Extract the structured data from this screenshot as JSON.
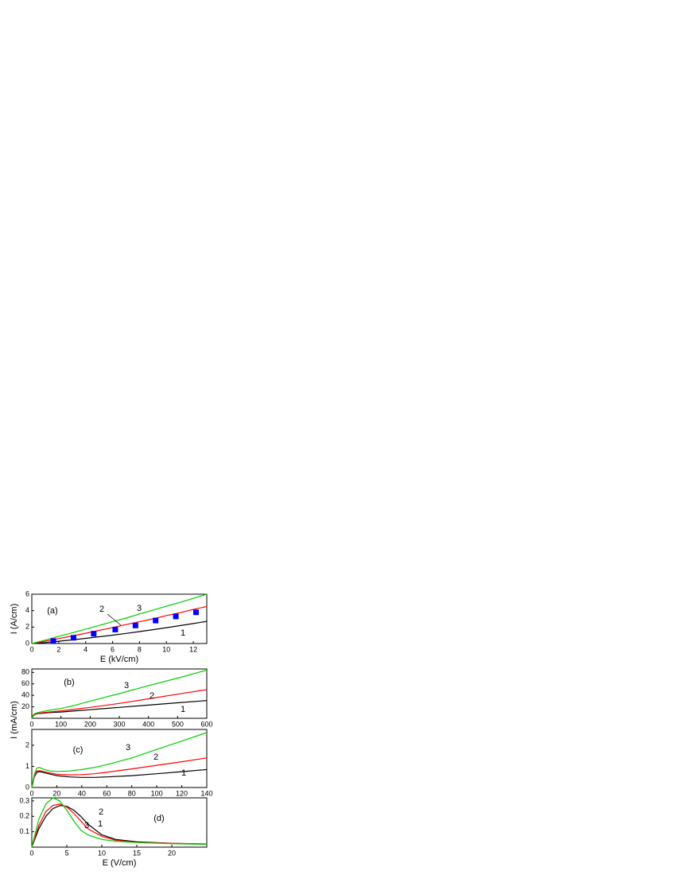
{
  "chart_data": [
    {
      "type": "line",
      "panel_label": "(a)",
      "xlabel": "E (kV/cm)",
      "ylabel": "I (A/cm)",
      "x": [
        0,
        1,
        2,
        3,
        4,
        5,
        6,
        7,
        8,
        9,
        10,
        11,
        12,
        13
      ],
      "xlim": [
        0,
        13
      ],
      "xticks": [
        0,
        2,
        4,
        6,
        8,
        10,
        12
      ],
      "ylim": [
        0,
        6
      ],
      "yticks": [
        0,
        2,
        4,
        6
      ],
      "series": [
        {
          "name": "1",
          "color": "#000000",
          "values": [
            0,
            0.12,
            0.28,
            0.45,
            0.63,
            0.82,
            1.02,
            1.23,
            1.45,
            1.68,
            1.93,
            2.18,
            2.43,
            2.7
          ]
        },
        {
          "name": "2",
          "color": "#ff0000",
          "values": [
            0,
            0.28,
            0.6,
            0.92,
            1.25,
            1.6,
            1.95,
            2.3,
            2.65,
            3.0,
            3.4,
            3.75,
            4.15,
            4.5
          ]
        },
        {
          "name": "3",
          "color": "#00cc00",
          "values": [
            0,
            0.42,
            0.86,
            1.3,
            1.75,
            2.2,
            2.65,
            3.1,
            3.6,
            4.05,
            4.55,
            5.0,
            5.5,
            6.0
          ]
        },
        {
          "marker": "square",
          "color": "#0000ff",
          "x": [
            1.6,
            3.1,
            4.6,
            6.2,
            7.7,
            9.2,
            10.7,
            12.2
          ],
          "values": [
            0.3,
            0.7,
            1.2,
            1.7,
            2.2,
            2.8,
            3.3,
            3.8
          ]
        }
      ]
    },
    {
      "type": "line",
      "panel_label": "(b)",
      "x": [
        0,
        5,
        10,
        20,
        40,
        60,
        100,
        150,
        200,
        300,
        400,
        500,
        600
      ],
      "xlim": [
        0,
        600
      ],
      "xticks": [
        0,
        100,
        200,
        300,
        400,
        500,
        600
      ],
      "ylim": [
        0,
        86
      ],
      "yticks": [
        20,
        40,
        60,
        80
      ],
      "series": [
        {
          "name": "1",
          "color": "#000000",
          "values": [
            0,
            4.5,
            6.5,
            8,
            9,
            10,
            11,
            13,
            15,
            19,
            23,
            27,
            31
          ]
        },
        {
          "name": "2",
          "color": "#ff0000",
          "values": [
            0,
            5,
            7,
            8.5,
            10,
            11,
            13,
            16,
            19,
            26,
            34,
            42,
            50
          ]
        },
        {
          "name": "3",
          "color": "#00cc00",
          "values": [
            0,
            6,
            8,
            10,
            12,
            14,
            17,
            23,
            30,
            43,
            57,
            70,
            84
          ]
        }
      ]
    },
    {
      "type": "line",
      "panel_label": "(c)",
      "ylabel": "I (mA/cm)",
      "x": [
        0,
        2,
        4,
        6,
        8,
        10,
        15,
        20,
        30,
        40,
        50,
        60,
        80,
        100,
        120,
        140
      ],
      "xlim": [
        0,
        140
      ],
      "xticks": [
        0,
        20,
        40,
        60,
        80,
        100,
        120,
        140
      ],
      "ylim": [
        0,
        2.75
      ],
      "yticks": [
        0,
        1,
        2
      ],
      "series": [
        {
          "name": "1",
          "color": "#000000",
          "values": [
            0,
            0.5,
            0.72,
            0.75,
            0.73,
            0.7,
            0.63,
            0.56,
            0.5,
            0.48,
            0.48,
            0.5,
            0.56,
            0.65,
            0.75,
            0.85
          ]
        },
        {
          "name": "2",
          "color": "#ff0000",
          "values": [
            0,
            0.55,
            0.78,
            0.8,
            0.78,
            0.75,
            0.68,
            0.63,
            0.6,
            0.61,
            0.65,
            0.72,
            0.88,
            1.05,
            1.22,
            1.4
          ]
        },
        {
          "name": "3",
          "color": "#00cc00",
          "values": [
            0,
            0.6,
            0.92,
            0.95,
            0.9,
            0.85,
            0.78,
            0.76,
            0.78,
            0.85,
            0.95,
            1.08,
            1.4,
            1.8,
            2.2,
            2.6
          ]
        }
      ]
    },
    {
      "type": "line",
      "panel_label": "(d)",
      "xlabel": "E (V/cm)",
      "x": [
        0,
        1,
        2,
        3,
        4,
        5,
        6,
        7,
        8,
        10,
        12,
        15,
        20,
        25
      ],
      "xlim": [
        0,
        25
      ],
      "xticks": [
        0,
        5,
        10,
        15,
        20
      ],
      "ylim": [
        0,
        0.32
      ],
      "yticks": [
        0.1,
        0.2,
        0.3
      ],
      "series": [
        {
          "name": "1",
          "color": "#000000",
          "values": [
            0,
            0.12,
            0.2,
            0.25,
            0.27,
            0.265,
            0.24,
            0.2,
            0.15,
            0.08,
            0.05,
            0.035,
            0.025,
            0.02
          ]
        },
        {
          "name": "2",
          "color": "#ff0000",
          "values": [
            0,
            0.14,
            0.23,
            0.27,
            0.28,
            0.26,
            0.22,
            0.17,
            0.12,
            0.07,
            0.045,
            0.032,
            0.025,
            0.02
          ]
        },
        {
          "name": "3",
          "color": "#00cc00",
          "values": [
            0,
            0.18,
            0.28,
            0.32,
            0.3,
            0.24,
            0.17,
            0.11,
            0.08,
            0.05,
            0.038,
            0.03,
            0.022,
            0.018
          ]
        }
      ]
    }
  ]
}
